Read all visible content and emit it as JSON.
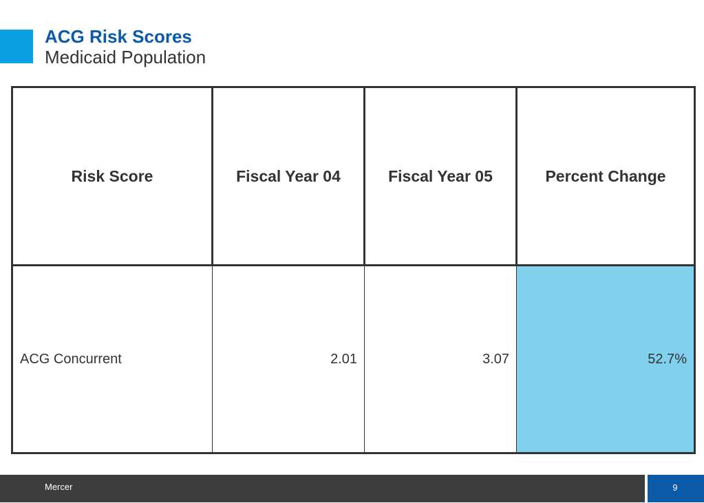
{
  "slide": {
    "title": "ACG Risk Scores",
    "subtitle": "Medicaid Population"
  },
  "table": {
    "headers": [
      "Risk Score",
      "Fiscal Year 04",
      "Fiscal Year 05",
      "Percent Change"
    ],
    "rows": [
      {
        "label": "ACG Concurrent",
        "fy04": "2.01",
        "fy05": "3.07",
        "change": "52.7%"
      }
    ]
  },
  "footer": {
    "company": "Mercer",
    "page_number": "9"
  },
  "colors": {
    "title": "#0a5aa8",
    "accent": "#0aa0e2",
    "highlight_cell": "#80d0ee",
    "footer_bar": "#3d3d3d",
    "page_box": "#0a5aa8"
  }
}
